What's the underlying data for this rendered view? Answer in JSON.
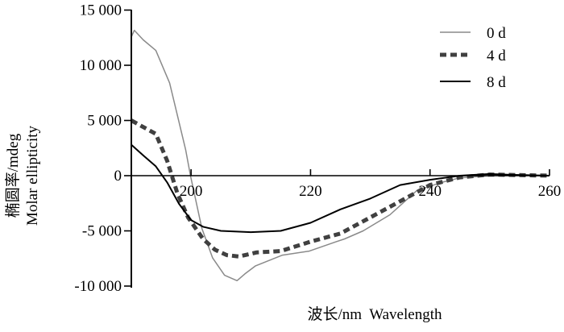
{
  "chart_data": {
    "type": "line",
    "title": "",
    "xlabel": "波长/nm  Wavelength",
    "ylabel_lines": [
      "椭圆率/mdeg",
      "Molar ellipticity"
    ],
    "xlim": [
      190,
      260
    ],
    "ylim": [
      -10000,
      15000
    ],
    "xticks": [
      200,
      220,
      240,
      260
    ],
    "yticks": [
      15000,
      10000,
      5000,
      0,
      -5000,
      -10000
    ],
    "ytick_labels": [
      "15 000",
      "10 000",
      "5 000",
      "0",
      "-5 000",
      "-10 000"
    ],
    "grid": false,
    "legend_position": "top-right",
    "series": [
      {
        "name": "0 d",
        "color": "#8a8a8a",
        "style": "solid",
        "x": [
          190,
          190.5,
          192,
          194.1,
          196.4,
          197.7,
          199.1,
          199.9,
          201.8,
          203.6,
          205.6,
          207.7,
          209,
          210.8,
          215.3,
          219.8,
          224.3,
          225.7,
          228.8,
          233.3,
          237.8,
          241.9,
          245,
          250,
          255,
          260
        ],
        "y": [
          12560,
          13170,
          12300,
          11340,
          8400,
          5490,
          2320,
          0,
          -4760,
          -7440,
          -9020,
          -9510,
          -8900,
          -8170,
          -7200,
          -6830,
          -5980,
          -5730,
          -5000,
          -3540,
          -1340,
          -610,
          -200,
          0,
          100,
          0
        ]
      },
      {
        "name": "4 d",
        "color": "#404040",
        "style": "dashed",
        "x": [
          190,
          194.1,
          196,
          197.7,
          199.5,
          202,
          204,
          206,
          208,
          211,
          215,
          220,
          225,
          230,
          235,
          240,
          245,
          250,
          255,
          260
        ],
        "y": [
          5000,
          3780,
          1340,
          -1590,
          -3780,
          -5730,
          -6710,
          -7200,
          -7320,
          -6950,
          -6830,
          -5980,
          -5240,
          -3780,
          -2320,
          -850,
          -150,
          100,
          50,
          0
        ]
      },
      {
        "name": "8 d",
        "color": "#000000",
        "style": "solid",
        "x": [
          190,
          192,
          194.1,
          196,
          198,
          200,
          202,
          205,
          210,
          215,
          220,
          225,
          230,
          235,
          240,
          245,
          250,
          255,
          260
        ],
        "y": [
          2800,
          1830,
          850,
          -610,
          -2560,
          -4020,
          -4630,
          -5000,
          -5120,
          -5000,
          -4270,
          -3050,
          -2070,
          -850,
          -370,
          0,
          150,
          50,
          0
        ]
      }
    ]
  }
}
